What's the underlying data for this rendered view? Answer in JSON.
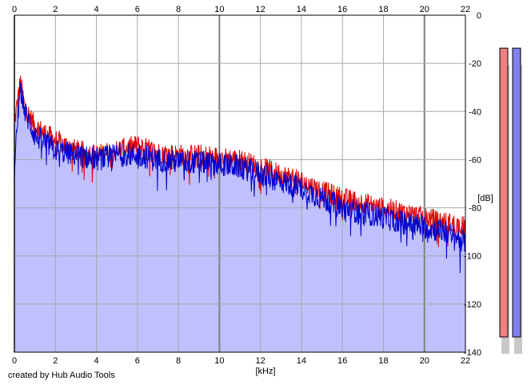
{
  "chart_data": {
    "type": "area",
    "title": "",
    "xlabel": "[kHz]",
    "ylabel": "[dB]",
    "x_range": [
      0,
      22
    ],
    "y_range": [
      -140,
      0
    ],
    "x_ticks": [
      0,
      2,
      4,
      6,
      8,
      10,
      12,
      14,
      16,
      18,
      20,
      22
    ],
    "y_ticks": [
      0,
      -20,
      -40,
      -60,
      -80,
      -100,
      -120,
      -140
    ],
    "grid": true,
    "legend": "none",
    "series": [
      {
        "color": "#e00000",
        "x": [
          0.0,
          0.2,
          0.3,
          0.5,
          1.0,
          2.0,
          3.0,
          4.0,
          5.0,
          6.0,
          7.0,
          8.0,
          9.0,
          10.0,
          11.0,
          12.0,
          13.0,
          14.0,
          15.0,
          16.0,
          17.0,
          18.0,
          19.0,
          20.0,
          21.0,
          22.0
        ],
        "values": [
          -45,
          -33,
          -28,
          -38,
          -46,
          -52,
          -56,
          -58,
          -56,
          -54,
          -57,
          -58,
          -58,
          -59,
          -60,
          -63,
          -66,
          -69,
          -73,
          -76,
          -78,
          -80,
          -82,
          -84,
          -86,
          -88
        ]
      },
      {
        "color": "#0000cc",
        "x": [
          0.0,
          0.2,
          0.3,
          0.5,
          1.0,
          2.0,
          3.0,
          4.0,
          5.0,
          6.0,
          7.0,
          8.0,
          9.0,
          10.0,
          11.0,
          12.0,
          13.0,
          14.0,
          15.0,
          16.0,
          17.0,
          18.0,
          19.0,
          20.0,
          21.0,
          22.0
        ],
        "values": [
          -68,
          -35,
          -30,
          -40,
          -50,
          -56,
          -58,
          -60,
          -58,
          -58,
          -60,
          -61,
          -61,
          -62,
          -63,
          -66,
          -69,
          -72,
          -76,
          -80,
          -82,
          -84,
          -86,
          -88,
          -90,
          -94
        ]
      }
    ],
    "area_fill_color": "#c0c0ff",
    "level_meters": [
      {
        "color": "#f08080",
        "value_db": -20
      },
      {
        "color": "#8080f0",
        "value_db": -20
      }
    ]
  },
  "footer": {
    "credit": "created by Hub Audio Tools"
  }
}
